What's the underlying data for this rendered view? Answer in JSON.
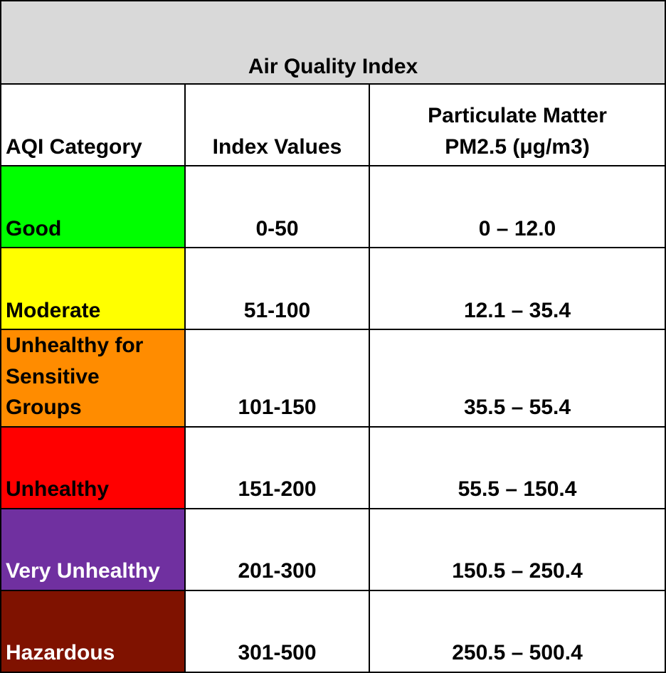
{
  "title": "Air Quality Index",
  "headers": {
    "category": "AQI Category",
    "index": "Index Values",
    "pm_line1": "Particulate Matter",
    "pm_line2": "PM2.5 (μg/m3)"
  },
  "rows": [
    {
      "category": "Good",
      "category_lines": [
        "Good"
      ],
      "index": "0-50",
      "pm": "0 – 12.0",
      "color": "#00ff00",
      "text_color": "#000000"
    },
    {
      "category": "Moderate",
      "category_lines": [
        "Moderate"
      ],
      "index": "51-100",
      "pm": "12.1 – 35.4",
      "color": "#ffff00",
      "text_color": "#000000"
    },
    {
      "category": "Unhealthy for Sensitive Groups",
      "category_lines": [
        "Unhealthy for",
        "Sensitive Groups"
      ],
      "index": "101-150",
      "pm": "35.5 – 55.4",
      "color": "#ff8c00",
      "text_color": "#000000"
    },
    {
      "category": "Unhealthy",
      "category_lines": [
        "Unhealthy"
      ],
      "index": "151-200",
      "pm": "55.5 – 150.4",
      "color": "#ff0000",
      "text_color": "#000000"
    },
    {
      "category": "Very Unhealthy",
      "category_lines": [
        "Very Unhealthy"
      ],
      "index": "201-300",
      "pm": "150.5 – 250.4",
      "color": "#7030a0",
      "text_color": "#ffffff"
    },
    {
      "category": "Hazardous",
      "category_lines": [
        "Hazardous"
      ],
      "index": "301-500",
      "pm": "250.5 – 500.4",
      "color": "#7f1200",
      "text_color": "#ffffff"
    }
  ]
}
